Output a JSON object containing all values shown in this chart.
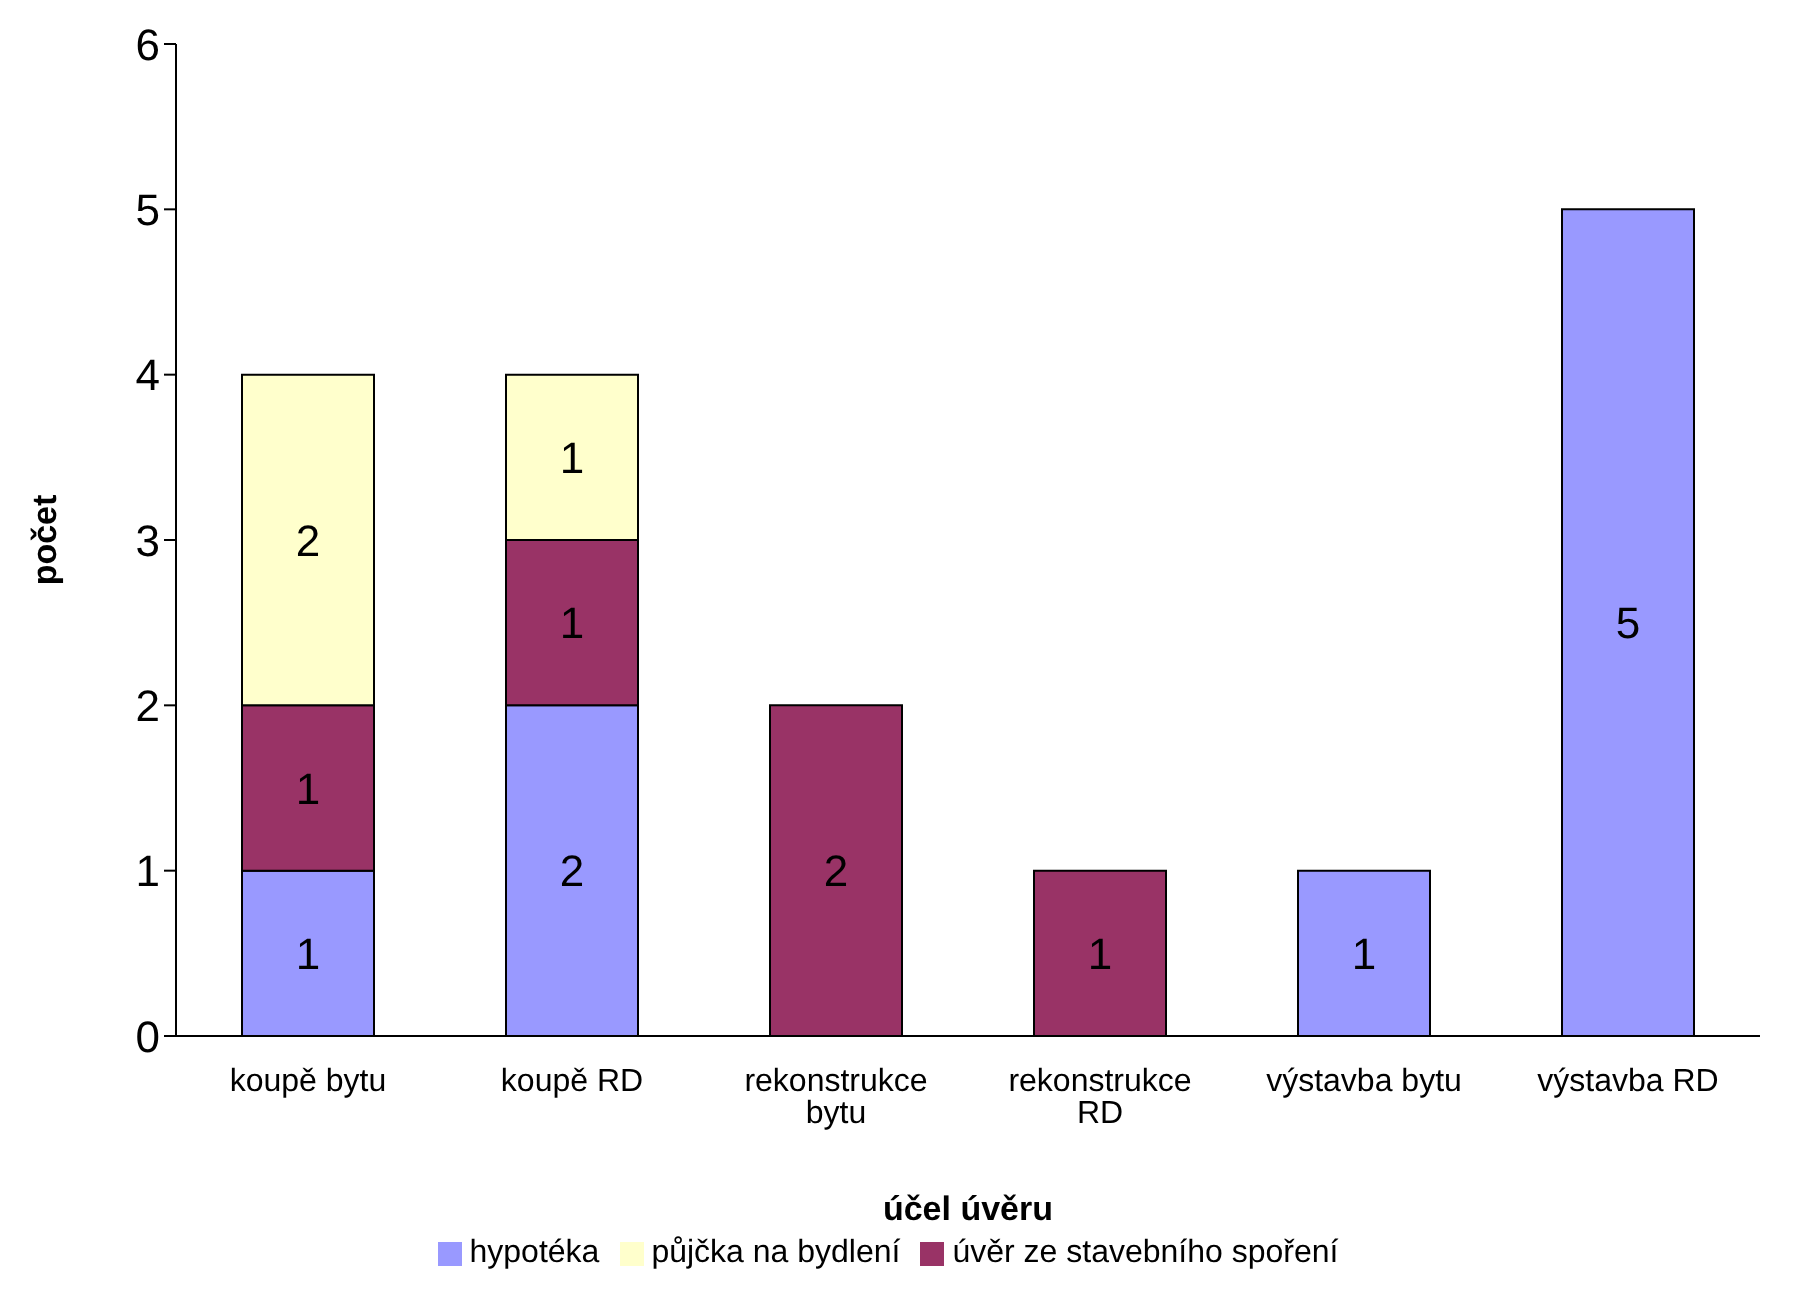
{
  "chart_data": {
    "type": "bar",
    "stacked": true,
    "xlabel": "účel úvěru",
    "ylabel": "počet",
    "categories": [
      "koupě bytu",
      "koupě RD",
      "rekonstrukce bytu",
      "rekonstrukce RD",
      "výstavba bytu",
      "výstavba RD"
    ],
    "series": [
      {
        "name": "hypotéka",
        "color": "#9999ff",
        "values": [
          1,
          2,
          null,
          null,
          1,
          5
        ]
      },
      {
        "name": "úvěr ze stavebního spoření",
        "color": "#993366",
        "values": [
          1,
          1,
          2,
          1,
          null,
          null
        ]
      },
      {
        "name": "půjčka na bydlení",
        "color": "#ffffcc",
        "values": [
          2,
          1,
          null,
          null,
          null,
          null
        ]
      }
    ],
    "ylim": [
      0,
      6
    ],
    "yticks": [
      0,
      1,
      2,
      3,
      4,
      5,
      6
    ],
    "grid": false,
    "legend": "bottom",
    "data_labels": true
  }
}
